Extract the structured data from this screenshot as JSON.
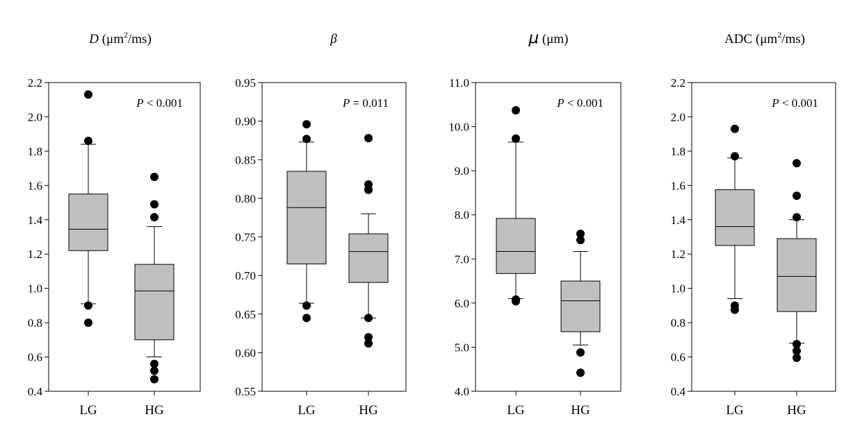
{
  "colors": {
    "box_fill": "#c0c0c0",
    "stroke": "#000000",
    "outlier": "#000000",
    "background": "#ffffff"
  },
  "chart_data": [
    {
      "type": "box",
      "title": {
        "var": "D",
        "unit_pre": " (μm",
        "sup": "2",
        "unit_post": "/ms)"
      },
      "categories": [
        "LG",
        "HG"
      ],
      "ylim": [
        0.4,
        2.2
      ],
      "yticks": [
        "0.4",
        "0.6",
        "0.8",
        "1.0",
        "1.2",
        "1.4",
        "1.6",
        "1.8",
        "2.0",
        "2.2"
      ],
      "p_value": {
        "label": "P",
        "text": " < 0.001"
      },
      "grid": false,
      "boxes": [
        {
          "category": "LG",
          "whisker_low": 0.91,
          "q1": 1.22,
          "median": 1.345,
          "q3": 1.55,
          "whisker_high": 1.84,
          "outliers": [
            2.13,
            1.86,
            0.9,
            0.8
          ]
        },
        {
          "category": "HG",
          "whisker_low": 0.6,
          "q1": 0.7,
          "median": 0.985,
          "q3": 1.14,
          "whisker_high": 1.36,
          "outliers": [
            1.65,
            1.49,
            1.415,
            0.56,
            0.52,
            0.47
          ]
        }
      ]
    },
    {
      "type": "box",
      "title": {
        "var": "β",
        "unit_pre": "",
        "sup": "",
        "unit_post": ""
      },
      "categories": [
        "LG",
        "HG"
      ],
      "ylim": [
        0.55,
        0.95
      ],
      "yticks": [
        "0.55",
        "0.60",
        "0.65",
        "0.70",
        "0.75",
        "0.80",
        "0.85",
        "0.90",
        "0.95"
      ],
      "p_value": {
        "label": "P",
        "text": " = 0.011"
      },
      "grid": false,
      "boxes": [
        {
          "category": "LG",
          "whisker_low": 0.664,
          "q1": 0.715,
          "median": 0.788,
          "q3": 0.835,
          "whisker_high": 0.873,
          "outliers": [
            0.896,
            0.877,
            0.661,
            0.645
          ]
        },
        {
          "category": "HG",
          "whisker_low": 0.645,
          "q1": 0.691,
          "median": 0.731,
          "q3": 0.754,
          "whisker_high": 0.78,
          "outliers": [
            0.878,
            0.818,
            0.811,
            0.645,
            0.62,
            0.612
          ]
        }
      ]
    },
    {
      "type": "box",
      "title": {
        "var": "μ",
        "unit_pre": " (μm)",
        "sup": "",
        "unit_post": ""
      },
      "categories": [
        "LG",
        "HG"
      ],
      "ylim": [
        4.0,
        11.0
      ],
      "yticks": [
        "4.0",
        "5.0",
        "6.0",
        "7.0",
        "8.0",
        "9.0",
        "10.0",
        "11.0"
      ],
      "p_value": {
        "label": "P",
        "text": " < 0.001"
      },
      "grid": false,
      "boxes": [
        {
          "category": "LG",
          "whisker_low": 6.1,
          "q1": 6.67,
          "median": 7.17,
          "q3": 7.92,
          "whisker_high": 9.65,
          "outliers": [
            10.37,
            9.73,
            6.08,
            6.04
          ]
        },
        {
          "category": "HG",
          "whisker_low": 5.05,
          "q1": 5.35,
          "median": 6.05,
          "q3": 6.5,
          "whisker_high": 7.17,
          "outliers": [
            7.57,
            7.43,
            4.88,
            4.42
          ]
        }
      ]
    },
    {
      "type": "box",
      "title": {
        "var": "",
        "unit_pre": "ADC (μm",
        "sup": "2",
        "unit_post": "/ms)"
      },
      "categories": [
        "LG",
        "HG"
      ],
      "ylim": [
        0.4,
        2.2
      ],
      "yticks": [
        "0.4",
        "0.6",
        "0.8",
        "1.0",
        "1.2",
        "1.4",
        "1.6",
        "1.8",
        "2.0",
        "2.2"
      ],
      "p_value": {
        "label": "P",
        "text": " < 0.001"
      },
      "grid": false,
      "boxes": [
        {
          "category": "LG",
          "whisker_low": 0.94,
          "q1": 1.25,
          "median": 1.36,
          "q3": 1.575,
          "whisker_high": 1.76,
          "outliers": [
            1.93,
            1.77,
            0.9,
            0.875
          ]
        },
        {
          "category": "HG",
          "whisker_low": 0.68,
          "q1": 0.865,
          "median": 1.07,
          "q3": 1.29,
          "whisker_high": 1.4,
          "outliers": [
            1.73,
            1.54,
            1.415,
            0.675,
            0.635,
            0.595
          ]
        }
      ]
    }
  ]
}
